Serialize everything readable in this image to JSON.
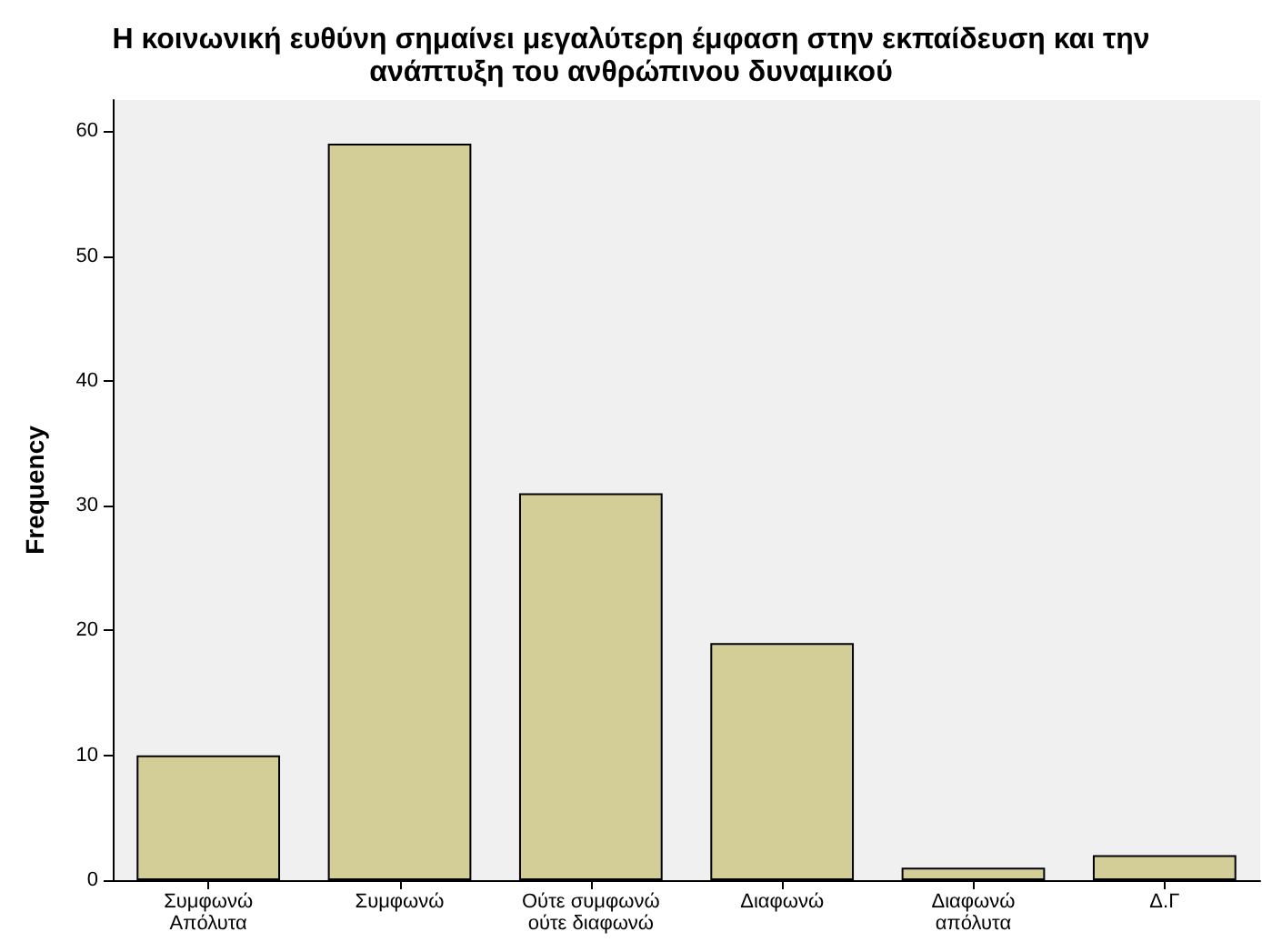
{
  "chart_data": {
    "type": "bar",
    "title": "Η κοινωνική ευθύνη σημαίνει μεγαλύτερη έμφαση στην εκπαίδευση και την\nανάπτυξη του ανθρώπινου δυναμικού",
    "ylabel": "Frequency",
    "categories": [
      "Συμφωνώ\nΑπόλυτα",
      "Συμφωνώ",
      "Ούτε συμφωνώ\nούτε διαφωνώ",
      "Διαφωνώ",
      "Διαφωνώ\nαπόλυτα",
      "Δ.Γ"
    ],
    "values": [
      10,
      59,
      31,
      19,
      1,
      2
    ],
    "color": "#d3ce97",
    "ylim": [
      0,
      62.5
    ],
    "yticks": [
      0,
      10,
      20,
      30,
      40,
      50,
      60
    ]
  }
}
